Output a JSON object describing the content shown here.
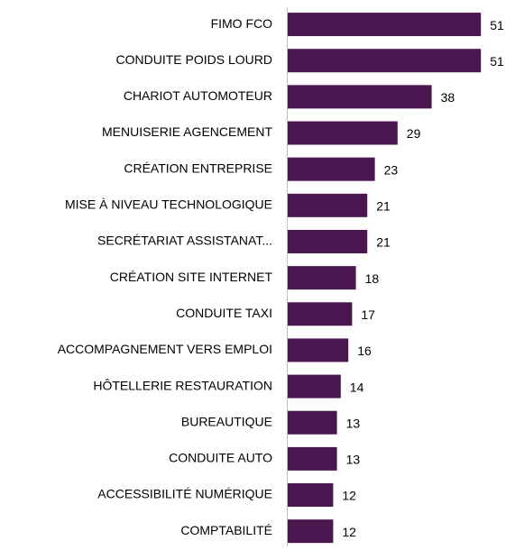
{
  "chart_data": {
    "type": "barh",
    "categories": [
      "FIMO FCO",
      "CONDUITE POIDS LOURD",
      "CHARIOT AUTOMOTEUR",
      "MENUISERIE AGENCEMENT",
      "CRÉATION ENTREPRISE",
      "MISE À NIVEAU TECHNOLOGIQUE",
      "SECRÉTARIAT ASSISTANAT...",
      "CRÉATION SITE INTERNET",
      "CONDUITE TAXI",
      "ACCOMPAGNEMENT VERS EMPLOI",
      "HÔTELLERIE RESTAURATION",
      "BUREAUTIQUE",
      "CONDUITE AUTO",
      "ACCESSIBILITÉ NUMÉRIQUE",
      "COMPTABILITÉ"
    ],
    "values": [
      51,
      51,
      38,
      29,
      23,
      21,
      21,
      18,
      17,
      16,
      14,
      13,
      13,
      12,
      12
    ],
    "color": "#4b1550"
  }
}
